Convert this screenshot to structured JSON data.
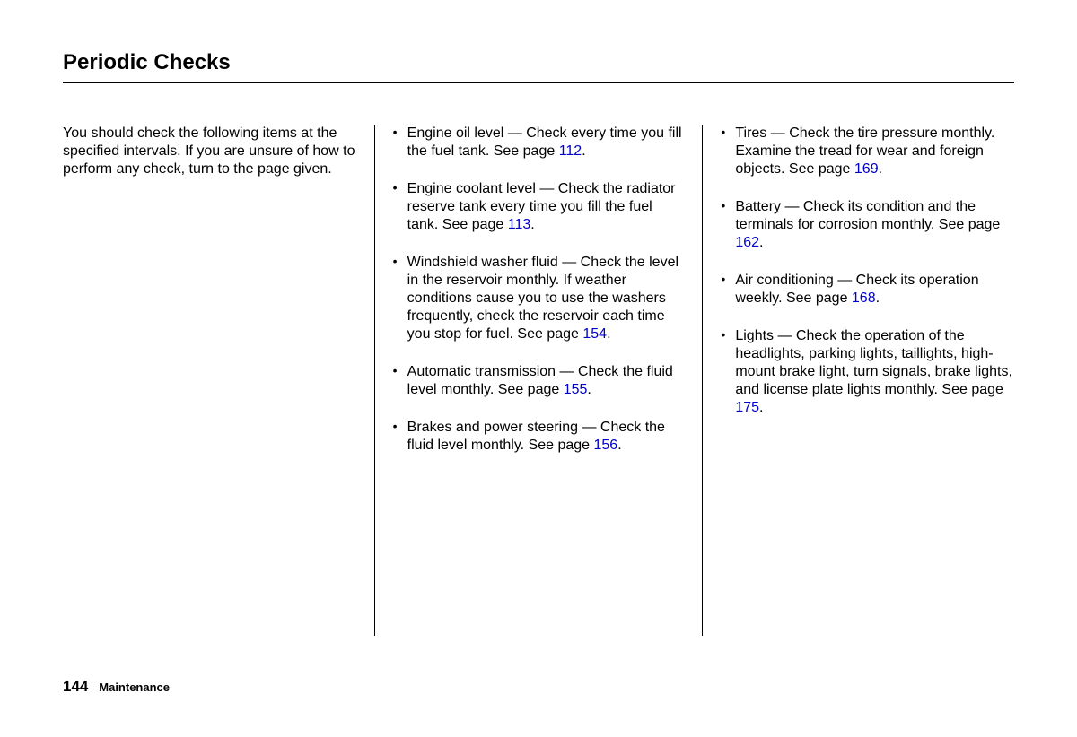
{
  "title": "Periodic Checks",
  "intro": "You should check the following items at the specified intervals. If you are unsure of how to perform any check, turn to the page given.",
  "col2": [
    {
      "text_before": "Engine oil level — Check every time you fill the fuel tank. See page ",
      "page": "112",
      "text_after": "."
    },
    {
      "text_before": "Engine coolant level — Check the radiator reserve tank every time you fill the fuel tank. See page ",
      "page": "113",
      "text_after": "."
    },
    {
      "text_before": "Windshield washer fluid — Check the level in the reservoir monthly. If weather conditions cause you to use the washers frequently, check the reservoir each time you stop for fuel. See page ",
      "page": "154",
      "text_after": "."
    },
    {
      "text_before": "Automatic transmission — Check the fluid level monthly. See page ",
      "page": "155",
      "text_after": "."
    },
    {
      "text_before": "Brakes and power steering — Check the fluid level monthly. See page ",
      "page": "156",
      "text_after": "."
    }
  ],
  "col3": [
    {
      "text_before": "Tires — Check the tire pressure monthly. Examine the tread for wear and foreign objects. See page ",
      "page": "169",
      "text_after": "."
    },
    {
      "text_before": "Battery — Check its condition and the terminals for corrosion monthly. See page ",
      "page": "162",
      "text_after": "."
    },
    {
      "text_before": "Air conditioning — Check its operation weekly. See page ",
      "page": "168",
      "text_after": "."
    },
    {
      "text_before": "Lights — Check the operation of the headlights, parking lights, taillights, high-mount brake light, turn signals, brake lights, and license plate lights monthly. See page ",
      "page": "175",
      "text_after": "."
    }
  ],
  "footer": {
    "page_number": "144",
    "section": "Maintenance"
  },
  "colors": {
    "link": "#0000cc",
    "text": "#000000",
    "background": "#ffffff"
  }
}
